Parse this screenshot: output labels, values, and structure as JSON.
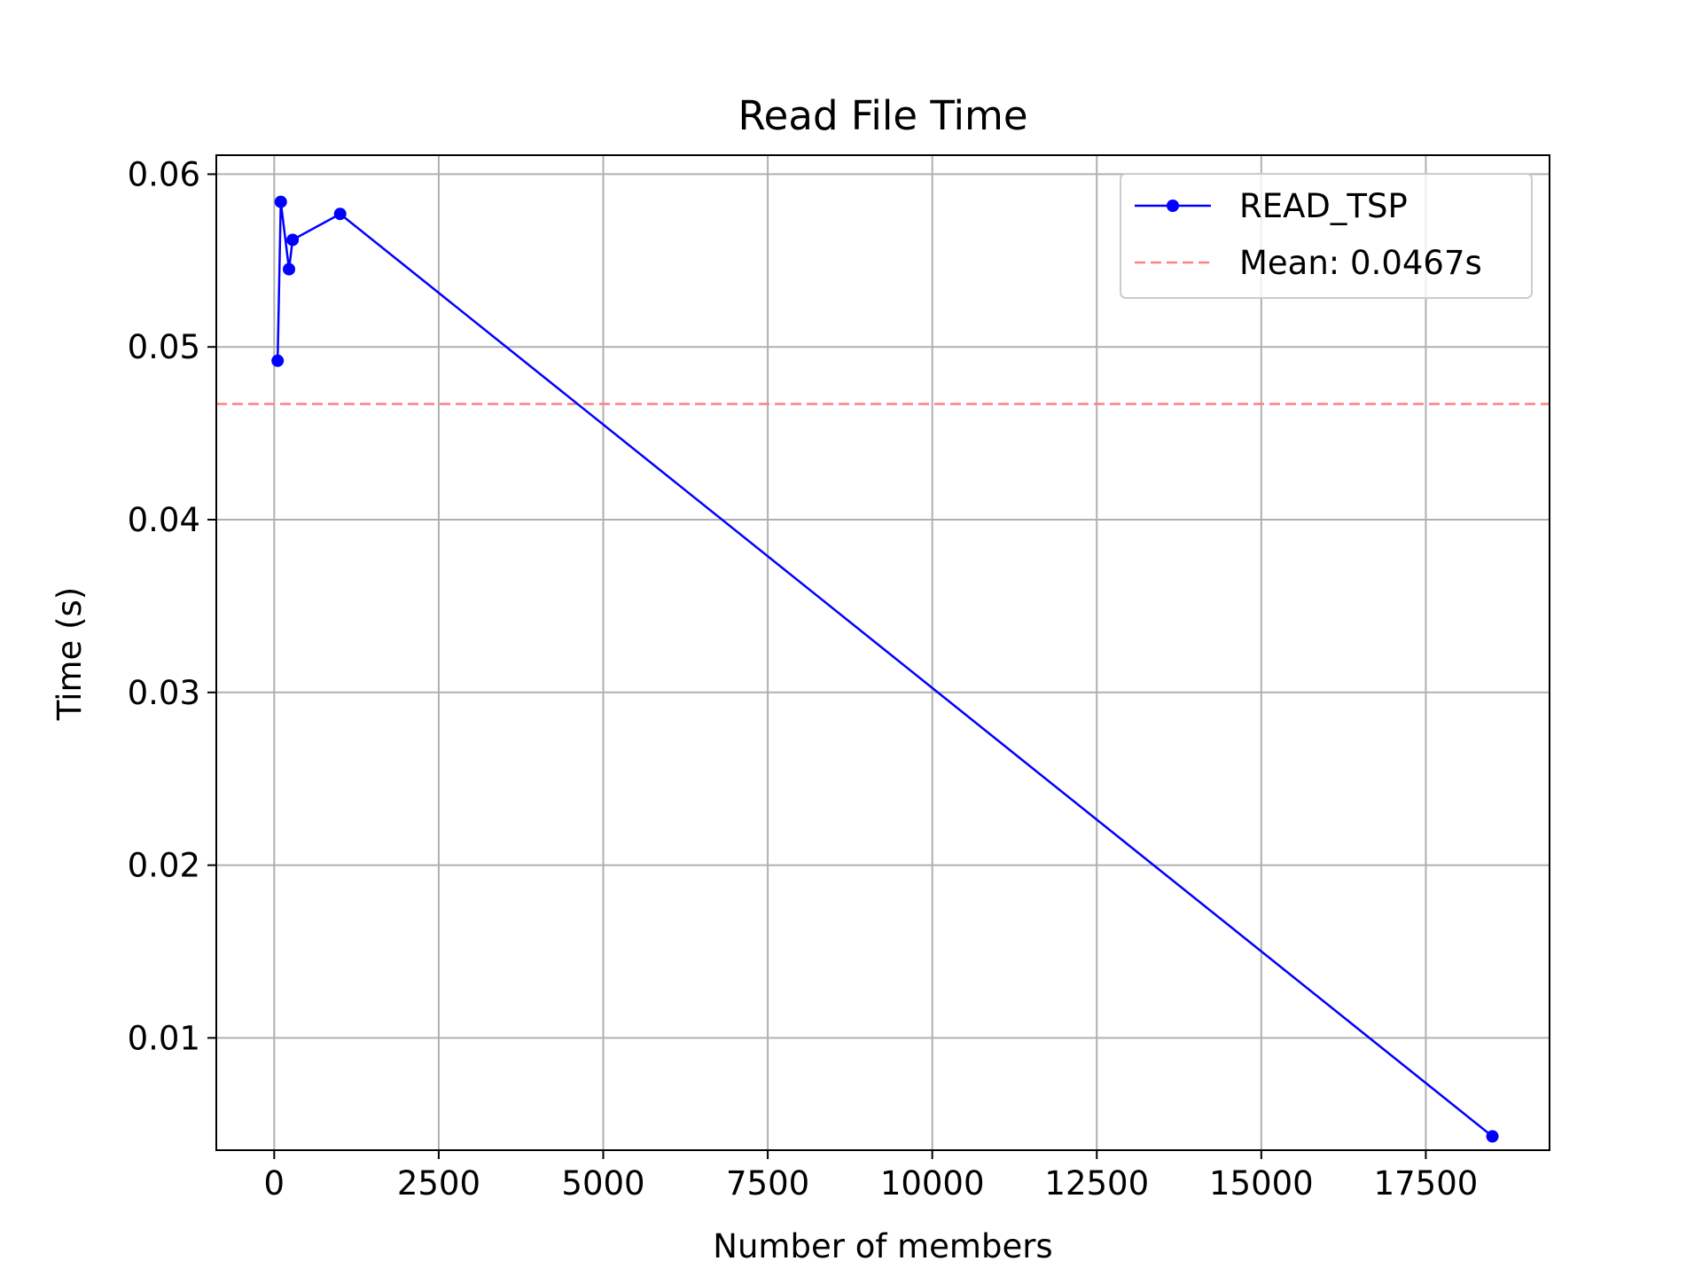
{
  "chart_data": {
    "type": "line",
    "title": "Read File Time",
    "xlabel": "Number of members",
    "ylabel": "Time (s)",
    "xlim": [
      -880,
      19380
    ],
    "ylim": [
      0.0035,
      0.0611
    ],
    "x_ticks": [
      0,
      2500,
      5000,
      7500,
      10000,
      12500,
      15000,
      17500
    ],
    "x_tick_labels": [
      "0",
      "2500",
      "5000",
      "7500",
      "10000",
      "12500",
      "15000",
      "17500"
    ],
    "y_ticks": [
      0.01,
      0.02,
      0.03,
      0.04,
      0.05,
      0.06
    ],
    "y_tick_labels": [
      "0.01",
      "0.02",
      "0.03",
      "0.04",
      "0.05",
      "0.06"
    ],
    "grid": true,
    "legend_position": "top-right",
    "series": [
      {
        "name": "READ_TSP",
        "color": "#0000ff",
        "marker": "circle",
        "line_style": "solid",
        "x": [
          52,
          100,
          225,
          280,
          1002,
          18512
        ],
        "y": [
          0.0492,
          0.0584,
          0.0545,
          0.0562,
          0.0577,
          0.0043
        ]
      }
    ],
    "reference_lines": [
      {
        "name": "Mean: 0.0467s",
        "orientation": "horizontal",
        "value": 0.0467,
        "color": "#ff8080",
        "line_style": "dashed"
      }
    ]
  }
}
